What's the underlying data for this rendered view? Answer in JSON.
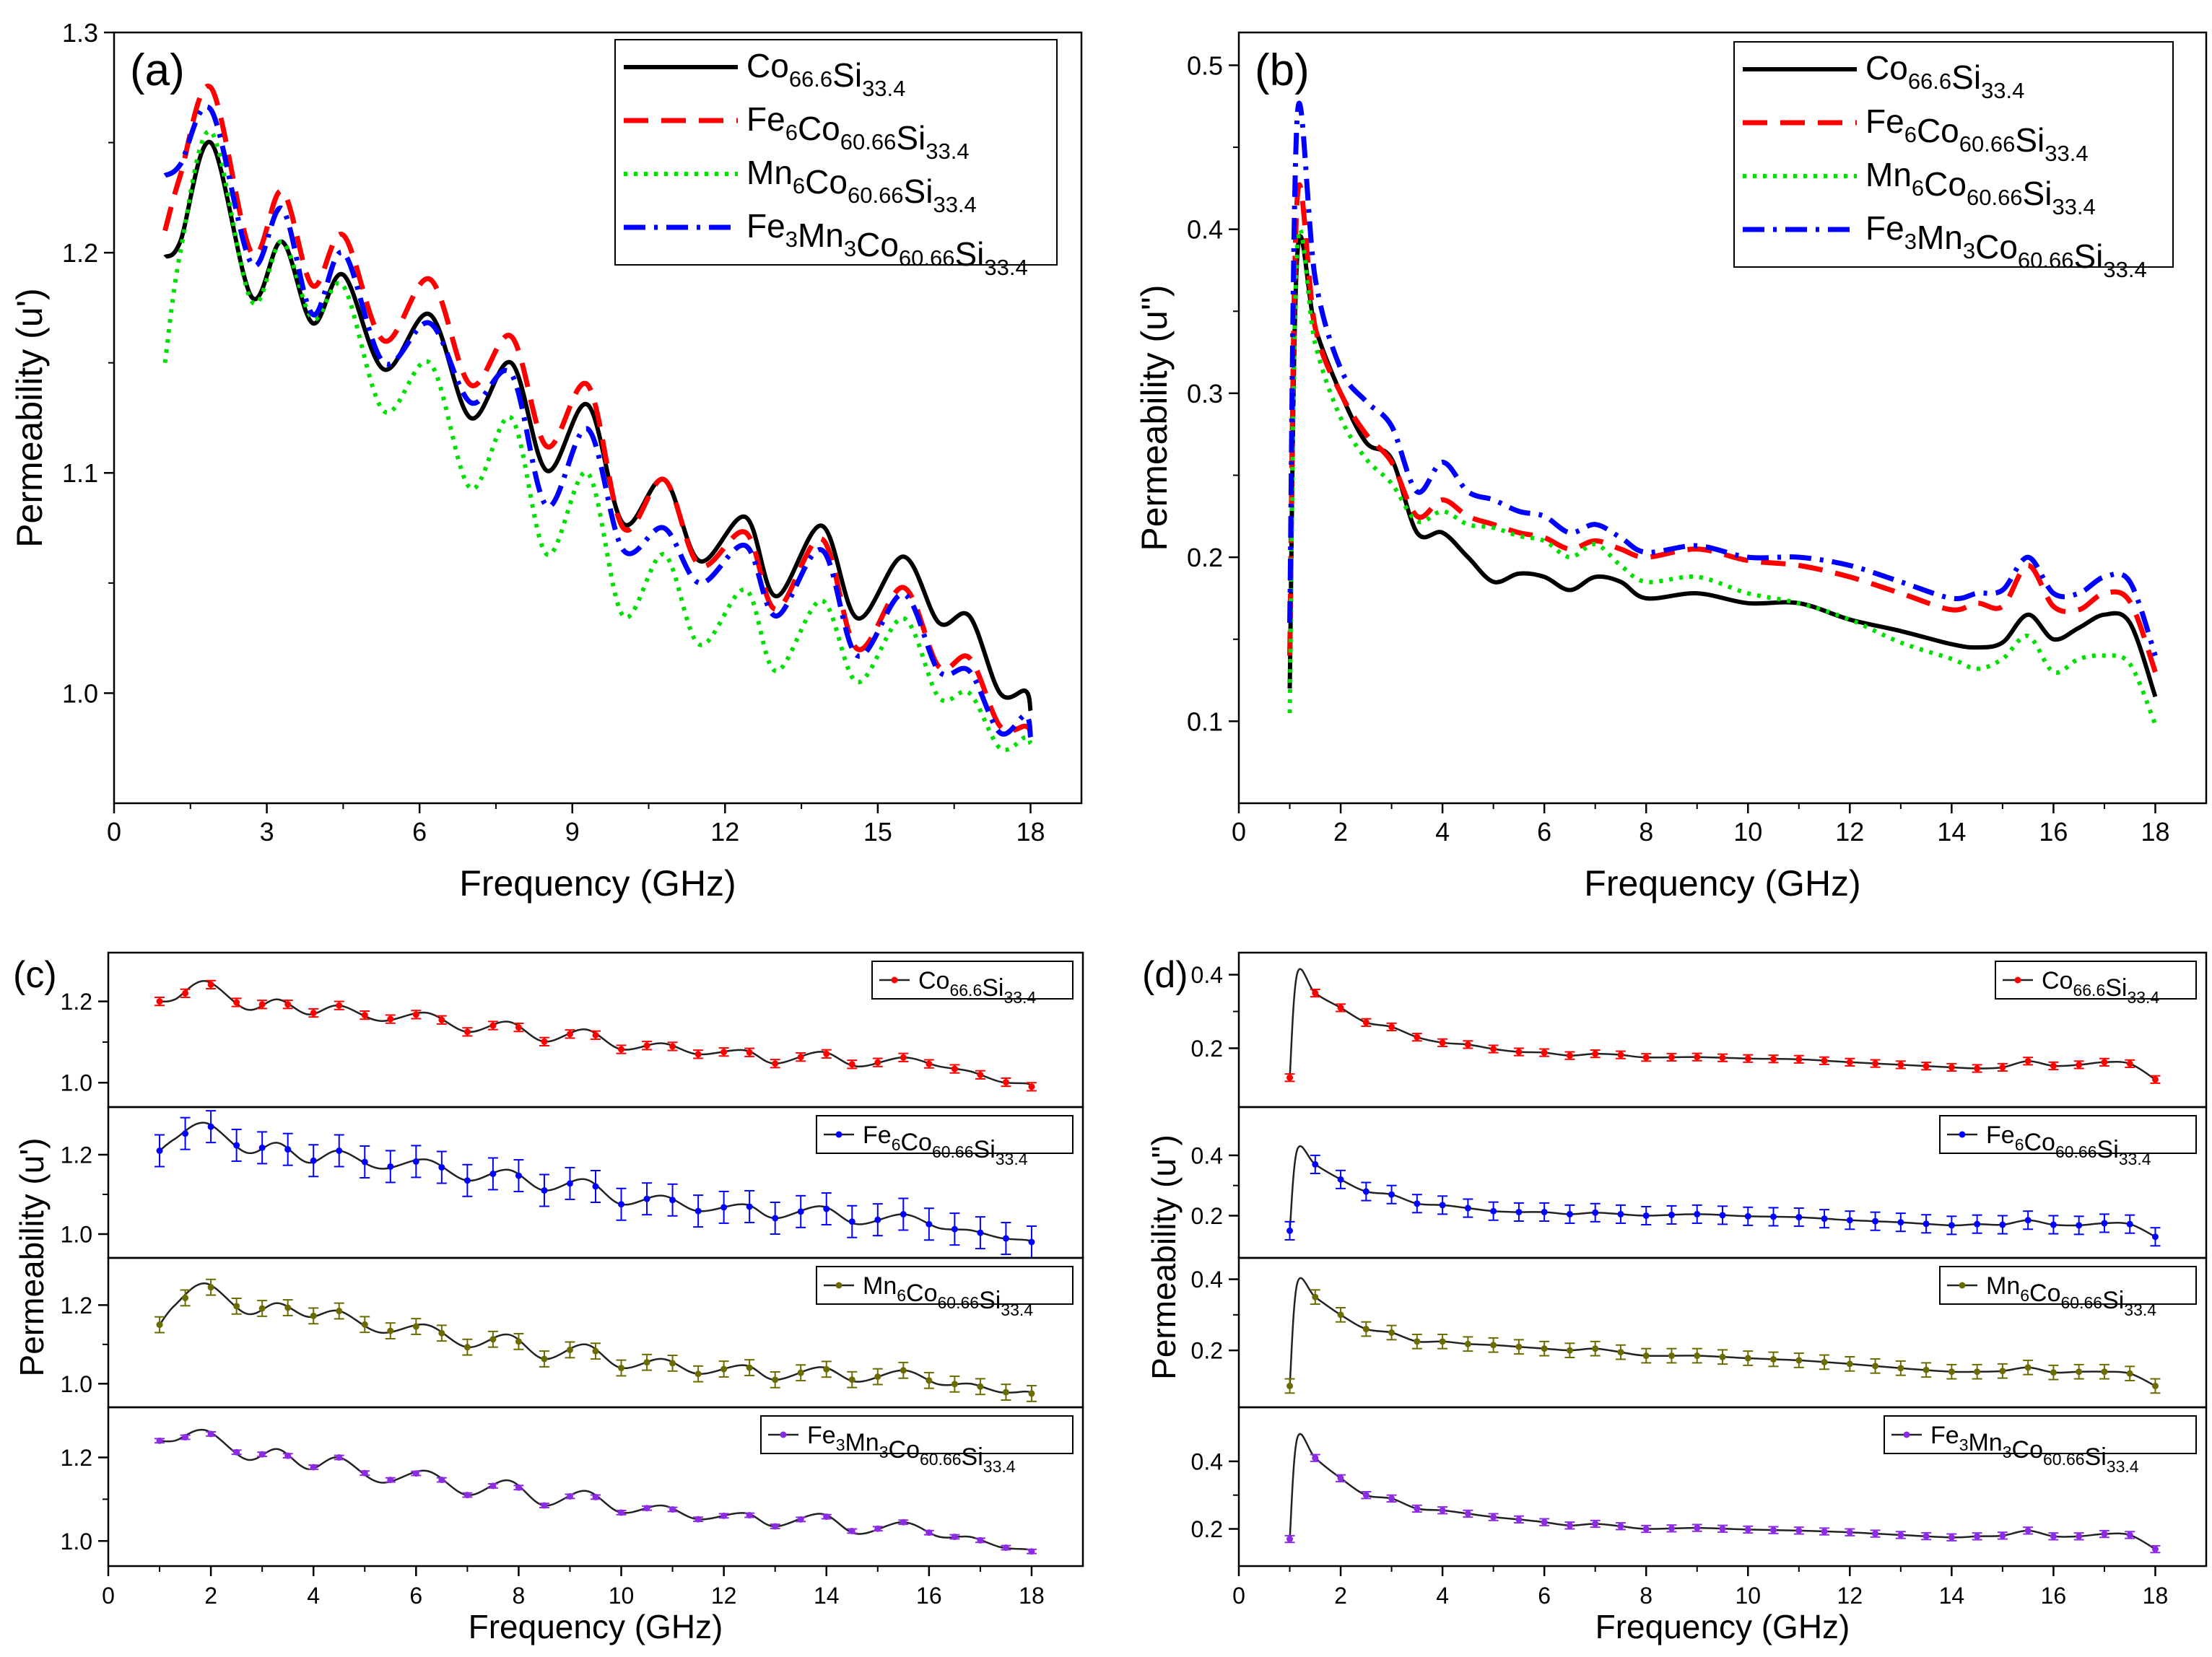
{
  "figure": {
    "x_label": "Frequency (GHz)"
  },
  "series_labels": [
    {
      "base": [
        "Co",
        "Si"
      ],
      "sub": [
        "66.6",
        "33.4"
      ]
    },
    {
      "base": [
        "Fe",
        "Co",
        "Si"
      ],
      "sub": [
        "6",
        "60.66",
        "33.4"
      ]
    },
    {
      "base": [
        "Mn",
        "Co",
        "Si"
      ],
      "sub": [
        "6",
        "60.66",
        "33.4"
      ]
    },
    {
      "base": [
        "Fe",
        "Mn",
        "Co",
        "Si"
      ],
      "sub": [
        "3",
        "3",
        "60.66",
        "33.4"
      ]
    }
  ],
  "colors": {
    "a_b": [
      "#000000",
      "#ff0000",
      "#00e000",
      "#0000ff"
    ],
    "c_d": [
      "#ff0000",
      "#0000ff",
      "#6b6b00",
      "#8b2be2"
    ]
  },
  "chart_data": [
    {
      "panel": "(a)",
      "type": "line",
      "title": "",
      "xlabel": "Frequency (GHz)",
      "ylabel": "Permeability (u')",
      "xlim": [
        0,
        19
      ],
      "ylim": [
        0.95,
        1.3
      ],
      "xticks": [
        0,
        3,
        6,
        9,
        12,
        15,
        18
      ],
      "yticks": [
        1.0,
        1.1,
        1.2,
        1.3
      ],
      "ytick_labels": [
        "1.0",
        "1.1",
        "1.2",
        "1.3"
      ],
      "legend": "top-right",
      "x": [
        1,
        1.3,
        1.9,
        2.7,
        3.3,
        3.9,
        4.5,
        5.3,
        6.2,
        7.0,
        7.8,
        8.5,
        9.3,
        10.0,
        10.8,
        11.5,
        12.4,
        13.0,
        13.9,
        14.6,
        15.5,
        16.2,
        16.8,
        17.4,
        17.9,
        18
      ],
      "series": [
        {
          "name": "Co66.6Si33.4",
          "values": [
            1.198,
            1.205,
            1.25,
            1.18,
            1.205,
            1.168,
            1.19,
            1.147,
            1.172,
            1.125,
            1.15,
            1.101,
            1.131,
            1.077,
            1.097,
            1.06,
            1.08,
            1.044,
            1.076,
            1.034,
            1.062,
            1.032,
            1.035,
            1.0,
            1.001,
            0.992
          ]
        },
        {
          "name": "Fe6Co60.66Si33.4",
          "values": [
            1.21,
            1.235,
            1.275,
            1.2,
            1.228,
            1.185,
            1.208,
            1.16,
            1.188,
            1.14,
            1.162,
            1.112,
            1.14,
            1.075,
            1.097,
            1.058,
            1.073,
            1.038,
            1.07,
            1.02,
            1.048,
            1.012,
            1.016,
            0.985,
            0.985,
            0.982
          ]
        },
        {
          "name": "Mn6Co60.66Si33.4",
          "values": [
            1.15,
            1.2,
            1.255,
            1.178,
            1.205,
            1.17,
            1.185,
            1.128,
            1.15,
            1.093,
            1.125,
            1.063,
            1.1,
            1.035,
            1.063,
            1.022,
            1.047,
            1.01,
            1.042,
            1.005,
            1.034,
            0.998,
            1.0,
            0.975,
            0.98,
            0.977
          ]
        },
        {
          "name": "Fe3Mn3Co60.66Si33.4",
          "values": [
            1.235,
            1.24,
            1.265,
            1.195,
            1.22,
            1.172,
            1.2,
            1.15,
            1.168,
            1.132,
            1.145,
            1.085,
            1.12,
            1.065,
            1.075,
            1.05,
            1.067,
            1.035,
            1.065,
            1.017,
            1.045,
            1.01,
            1.01,
            0.982,
            0.99,
            0.98
          ]
        }
      ]
    },
    {
      "panel": "(b)",
      "type": "line",
      "title": "",
      "xlabel": "Frequency (GHz)",
      "ylabel": "Permeability (u'')",
      "xlim": [
        0,
        19
      ],
      "ylim": [
        0.05,
        0.52
      ],
      "xticks": [
        0,
        2,
        4,
        6,
        8,
        10,
        12,
        14,
        16,
        18
      ],
      "yticks": [
        0.1,
        0.2,
        0.3,
        0.4,
        0.5
      ],
      "ytick_labels": [
        "0.1",
        "0.2",
        "0.3",
        "0.4",
        "0.5"
      ],
      "legend": "top-right",
      "x": [
        1,
        1.15,
        1.5,
        2,
        2.5,
        3,
        3.5,
        4,
        4.5,
        5,
        5.5,
        6,
        6.5,
        7,
        7.5,
        8,
        9,
        10,
        11,
        12,
        13,
        14,
        14.5,
        15,
        15.5,
        16,
        16.5,
        17,
        17.5,
        18
      ],
      "series": [
        {
          "name": "Co66.6Si33.4",
          "values": [
            0.12,
            0.385,
            0.34,
            0.3,
            0.27,
            0.26,
            0.215,
            0.215,
            0.2,
            0.185,
            0.19,
            0.188,
            0.18,
            0.188,
            0.185,
            0.175,
            0.178,
            0.172,
            0.172,
            0.162,
            0.155,
            0.147,
            0.145,
            0.148,
            0.165,
            0.15,
            0.157,
            0.165,
            0.16,
            0.115
          ]
        },
        {
          "name": "Fe6Co60.66Si33.4",
          "values": [
            0.14,
            0.42,
            0.34,
            0.3,
            0.275,
            0.258,
            0.225,
            0.235,
            0.225,
            0.22,
            0.215,
            0.212,
            0.205,
            0.21,
            0.205,
            0.2,
            0.205,
            0.198,
            0.195,
            0.188,
            0.178,
            0.168,
            0.172,
            0.17,
            0.195,
            0.17,
            0.168,
            0.178,
            0.173,
            0.13
          ]
        },
        {
          "name": "Mn6Co60.66Si33.4",
          "values": [
            0.105,
            0.39,
            0.33,
            0.285,
            0.26,
            0.245,
            0.222,
            0.228,
            0.22,
            0.218,
            0.213,
            0.21,
            0.2,
            0.208,
            0.195,
            0.185,
            0.188,
            0.178,
            0.172,
            0.162,
            0.148,
            0.138,
            0.132,
            0.138,
            0.152,
            0.13,
            0.138,
            0.14,
            0.135,
            0.098
          ]
        },
        {
          "name": "Fe3Mn3Co60.66Si33.4",
          "values": [
            0.16,
            0.47,
            0.37,
            0.315,
            0.295,
            0.28,
            0.24,
            0.258,
            0.24,
            0.235,
            0.228,
            0.225,
            0.215,
            0.22,
            0.212,
            0.203,
            0.207,
            0.2,
            0.2,
            0.195,
            0.185,
            0.175,
            0.178,
            0.18,
            0.2,
            0.178,
            0.178,
            0.188,
            0.185,
            0.14
          ]
        }
      ]
    },
    {
      "panel": "(c)",
      "type": "line",
      "title": "",
      "xlabel": "Frequency (GHz)",
      "ylabel": "Permeability (u')",
      "xlim": [
        0,
        19
      ],
      "xticks": [
        0,
        2,
        4,
        6,
        8,
        10,
        12,
        14,
        16,
        18
      ],
      "ylim": [
        0.94,
        1.32
      ],
      "yticks": [
        1.0,
        1.2
      ],
      "ytick_labels": [
        "1.0",
        "1.2"
      ],
      "legend": "top-right",
      "x": [
        1,
        1.3,
        1.9,
        2.7,
        3.3,
        3.9,
        4.5,
        5.3,
        6.2,
        7.0,
        7.8,
        8.5,
        9.3,
        10.0,
        10.8,
        11.5,
        12.4,
        13.0,
        13.9,
        14.6,
        15.5,
        16.2,
        16.8,
        17.4,
        17.9,
        18
      ],
      "error_bars": [
        0.01,
        0.04,
        0.02,
        0.005
      ],
      "series": [
        {
          "name": "Co66.6Si33.4",
          "values": [
            1.2,
            1.205,
            1.25,
            1.18,
            1.205,
            1.168,
            1.19,
            1.152,
            1.172,
            1.125,
            1.15,
            1.101,
            1.131,
            1.082,
            1.097,
            1.07,
            1.08,
            1.047,
            1.076,
            1.04,
            1.062,
            1.04,
            1.028,
            1.002,
            0.998,
            0.99
          ]
        },
        {
          "name": "Fe6Co60.66Si33.4",
          "values": [
            1.21,
            1.24,
            1.28,
            1.205,
            1.23,
            1.18,
            1.21,
            1.165,
            1.188,
            1.135,
            1.162,
            1.11,
            1.138,
            1.075,
            1.097,
            1.058,
            1.075,
            1.04,
            1.07,
            1.025,
            1.05,
            1.015,
            1.01,
            0.99,
            0.985,
            0.98
          ]
        },
        {
          "name": "Mn6Co60.66Si33.4",
          "values": [
            1.15,
            1.2,
            1.255,
            1.178,
            1.205,
            1.17,
            1.185,
            1.13,
            1.15,
            1.093,
            1.125,
            1.063,
            1.1,
            1.04,
            1.063,
            1.025,
            1.047,
            1.01,
            1.042,
            1.005,
            1.034,
            0.998,
            1.0,
            0.978,
            0.98,
            0.975
          ]
        },
        {
          "name": "Fe3Mn3Co60.66Si33.4",
          "values": [
            1.24,
            1.24,
            1.265,
            1.195,
            1.22,
            1.172,
            1.2,
            1.14,
            1.168,
            1.11,
            1.145,
            1.085,
            1.12,
            1.068,
            1.085,
            1.052,
            1.067,
            1.035,
            1.065,
            1.017,
            1.045,
            1.01,
            1.01,
            0.985,
            0.98,
            0.975
          ]
        }
      ]
    },
    {
      "panel": "(d)",
      "type": "line",
      "title": "",
      "xlabel": "Frequency (GHz)",
      "ylabel": "Permeability (u'')",
      "xlim": [
        0,
        19
      ],
      "xticks": [
        0,
        2,
        4,
        6,
        8,
        10,
        12,
        14,
        16,
        18
      ],
      "ylim_list": [
        [
          0.04,
          0.46
        ],
        [
          0.06,
          0.56
        ],
        [
          0.04,
          0.46
        ],
        [
          0.09,
          0.56
        ]
      ],
      "yticks_list": [
        [
          0.2,
          0.4
        ],
        [
          0.2,
          0.4
        ],
        [
          0.2,
          0.4
        ],
        [
          0.2,
          0.4
        ]
      ],
      "ytick_labels_list": [
        [
          "0.2",
          "0.4"
        ],
        [
          "0.2",
          "0.4"
        ],
        [
          "0.2",
          "0.4"
        ],
        [
          "0.2",
          "0.4"
        ]
      ],
      "legend": "top-right",
      "x": [
        1,
        1.15,
        1.5,
        2,
        2.5,
        3,
        3.5,
        4,
        4.5,
        5,
        5.5,
        6,
        6.5,
        7,
        7.5,
        8,
        9,
        10,
        11,
        12,
        13,
        14,
        14.5,
        15,
        15.5,
        16,
        16.5,
        17,
        17.5,
        18
      ],
      "error_bars": [
        0.01,
        0.03,
        0.02,
        0.01
      ],
      "series": [
        {
          "name": "Co66.6Si33.4",
          "values": [
            0.12,
            0.405,
            0.35,
            0.31,
            0.27,
            0.258,
            0.23,
            0.215,
            0.21,
            0.198,
            0.19,
            0.188,
            0.18,
            0.185,
            0.182,
            0.175,
            0.176,
            0.172,
            0.17,
            0.162,
            0.155,
            0.148,
            0.145,
            0.148,
            0.165,
            0.152,
            0.155,
            0.162,
            0.158,
            0.115
          ]
        },
        {
          "name": "Fe6Co60.66Si33.4",
          "values": [
            0.15,
            0.42,
            0.37,
            0.32,
            0.28,
            0.27,
            0.24,
            0.235,
            0.225,
            0.215,
            0.212,
            0.212,
            0.205,
            0.21,
            0.205,
            0.2,
            0.205,
            0.198,
            0.195,
            0.185,
            0.178,
            0.168,
            0.172,
            0.17,
            0.185,
            0.17,
            0.168,
            0.175,
            0.172,
            0.13
          ]
        },
        {
          "name": "Mn6Co60.66Si33.4",
          "values": [
            0.1,
            0.39,
            0.35,
            0.3,
            0.26,
            0.25,
            0.225,
            0.225,
            0.218,
            0.215,
            0.21,
            0.205,
            0.2,
            0.205,
            0.195,
            0.185,
            0.185,
            0.178,
            0.172,
            0.162,
            0.15,
            0.14,
            0.14,
            0.142,
            0.152,
            0.138,
            0.14,
            0.14,
            0.135,
            0.1
          ]
        },
        {
          "name": "Fe3Mn3Co60.66Si33.4",
          "values": [
            0.17,
            0.47,
            0.41,
            0.35,
            0.3,
            0.29,
            0.26,
            0.255,
            0.245,
            0.235,
            0.228,
            0.22,
            0.21,
            0.215,
            0.208,
            0.2,
            0.203,
            0.198,
            0.195,
            0.19,
            0.182,
            0.175,
            0.178,
            0.18,
            0.195,
            0.178,
            0.178,
            0.185,
            0.182,
            0.14
          ]
        }
      ]
    }
  ]
}
